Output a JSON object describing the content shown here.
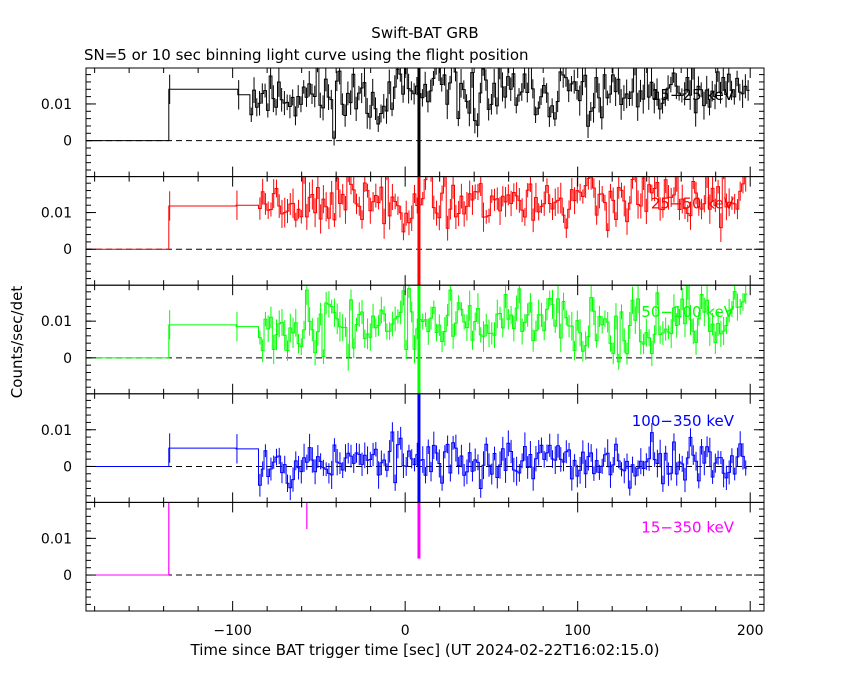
{
  "chart_data": {
    "type": "line",
    "title": "Swift-BAT GRB",
    "subtitle": "SN=5 or 10 sec binning light curve using the flight position",
    "xlabel": "Time since BAT trigger time [sec] (UT 2024-02-22T16:02:15.0)",
    "ylabel": "Counts/sec/det",
    "xlim": [
      -185,
      208
    ],
    "ylim": [
      -0.0098,
      0.0198
    ],
    "x_ticks": [
      -100,
      0,
      100,
      200
    ],
    "x_tick_labels": [
      "−100",
      "0",
      "100",
      "200"
    ],
    "y_ticks": [
      0,
      0.01
    ],
    "y_tick_labels": [
      "0",
      "0.01"
    ],
    "zero_line": "dashed",
    "panels": [
      {
        "label": "15−25 keV",
        "color": "#000000",
        "steps": [
          {
            "x0": -185,
            "x1": -137,
            "y": 0.0
          },
          {
            "x0": -137,
            "x1": -97,
            "y": 0.014
          },
          {
            "x0": -97,
            "x1": -90,
            "y": 0.0125
          }
        ],
        "noise": {
          "start": -90,
          "end": 198,
          "step": 1.6,
          "mean": 0.0125,
          "amp": 0.0075,
          "err": 0.003,
          "seed": 11
        },
        "spike": {
          "x": 8,
          "lo": -0.0098,
          "hi": 0.0198
        },
        "labelPos": "upper-right"
      },
      {
        "label": "25−50 keV",
        "color": "#ff0000",
        "steps": [
          {
            "x0": -185,
            "x1": -137,
            "y": 0.0
          },
          {
            "x0": -137,
            "x1": -98,
            "y": 0.0118
          },
          {
            "x0": -98,
            "x1": -85,
            "y": 0.012
          }
        ],
        "noise": {
          "start": -85,
          "end": 198,
          "step": 1.6,
          "mean": 0.0135,
          "amp": 0.0065,
          "err": 0.003,
          "seed": 23
        },
        "spike": {
          "x": 8,
          "lo": -0.0098,
          "hi": 0.0198
        },
        "labelPos": "upper-right"
      },
      {
        "label": "50−100 keV",
        "color": "#00ff00",
        "steps": [
          {
            "x0": -185,
            "x1": -137,
            "y": 0.0
          },
          {
            "x0": -137,
            "x1": -98,
            "y": 0.009
          },
          {
            "x0": -98,
            "x1": -85,
            "y": 0.0085
          }
        ],
        "noise": {
          "start": -85,
          "end": 198,
          "step": 1.6,
          "mean": 0.0095,
          "amp": 0.0075,
          "err": 0.003,
          "seed": 37
        },
        "spike": {
          "x": 8,
          "lo": -0.0098,
          "hi": 0.0198
        },
        "labelPos": "upper-right"
      },
      {
        "label": "100−350 keV",
        "color": "#0000ff",
        "steps": [
          {
            "x0": -185,
            "x1": -137,
            "y": 0.0
          },
          {
            "x0": -137,
            "x1": -98,
            "y": 0.005
          },
          {
            "x0": -98,
            "x1": -85,
            "y": 0.0048
          }
        ],
        "noise": {
          "start": -85,
          "end": 198,
          "step": 1.6,
          "mean": 0.0015,
          "amp": 0.0055,
          "err": 0.0028,
          "seed": 53
        },
        "spike": {
          "x": 8,
          "lo": -0.0098,
          "hi": 0.0198
        },
        "labelPos": "upper-right"
      },
      {
        "label": "15−350 keV",
        "color": "#ff00ff",
        "steps": [
          {
            "x0": -185,
            "x1": -137,
            "y": 0.0
          }
        ],
        "noise": null,
        "spike": {
          "x": 8,
          "lo": 0.0045,
          "hi": 0.0198
        },
        "extraLines": [
          {
            "x": -137,
            "lo": 0.0,
            "hi": 0.0198
          },
          {
            "x": -57,
            "lo": 0.0125,
            "hi": 0.0198
          }
        ],
        "labelPos": "middle-right"
      }
    ]
  }
}
